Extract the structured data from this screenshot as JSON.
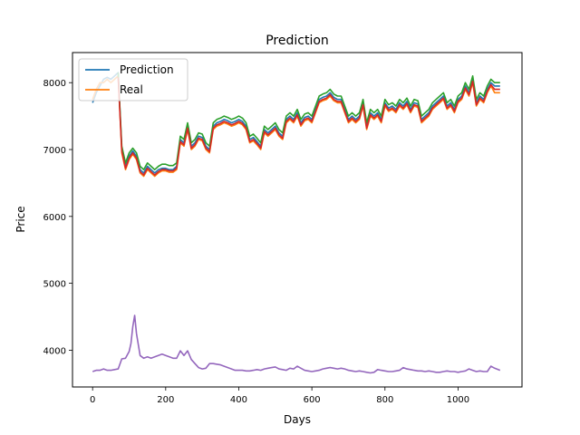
{
  "chart_data": {
    "type": "line",
    "title": "Prediction",
    "xlabel": "Days",
    "ylabel": "Price",
    "xlim": [
      -55,
      1175
    ],
    "ylim": [
      3450,
      8450
    ],
    "xticks": [
      0,
      200,
      400,
      600,
      800,
      1000
    ],
    "yticks": [
      4000,
      5000,
      6000,
      7000,
      8000
    ],
    "legend": {
      "placement": "top-left",
      "entries": [
        "Prediction",
        "Real"
      ]
    },
    "grid": false,
    "colors": [
      "#1f77b4",
      "#ff7f0e",
      "#2ca02c",
      "#d62728",
      "#9467bd"
    ],
    "series": [
      {
        "name": "Prediction",
        "color": "#1f77b4",
        "x": [
          0,
          10,
          20,
          30,
          40,
          50,
          60,
          70,
          80,
          90,
          100,
          110,
          120,
          130,
          140,
          150,
          160,
          170,
          180,
          190,
          200,
          210,
          220,
          230,
          240,
          250,
          260,
          270,
          280,
          290,
          300,
          310,
          320,
          330,
          340,
          350,
          360,
          370,
          380,
          390,
          400,
          410,
          420,
          430,
          440,
          450,
          460,
          470,
          480,
          490,
          500,
          510,
          520,
          530,
          540,
          550,
          560,
          570,
          580,
          590,
          600,
          610,
          620,
          630,
          640,
          650,
          660,
          670,
          680,
          690,
          700,
          710,
          720,
          730,
          740,
          750,
          760,
          770,
          780,
          790,
          800,
          810,
          820,
          830,
          840,
          850,
          860,
          870,
          880,
          890,
          900,
          910,
          920,
          930,
          940,
          950,
          960,
          970,
          980,
          990,
          1000,
          1010,
          1020,
          1030,
          1040,
          1050,
          1060,
          1070,
          1080,
          1090,
          1100,
          1115
        ],
        "y": [
          7700,
          7850,
          7950,
          8050,
          8080,
          8050,
          8100,
          8150,
          7000,
          6750,
          6900,
          6980,
          6900,
          6700,
          6650,
          6750,
          6700,
          6650,
          6700,
          6720,
          6720,
          6700,
          6700,
          6750,
          7150,
          7100,
          7350,
          7050,
          7100,
          7200,
          7180,
          7050,
          7000,
          7350,
          7400,
          7420,
          7450,
          7430,
          7400,
          7420,
          7450,
          7420,
          7350,
          7150,
          7180,
          7120,
          7050,
          7300,
          7250,
          7300,
          7350,
          7250,
          7200,
          7450,
          7500,
          7450,
          7550,
          7400,
          7480,
          7500,
          7450,
          7600,
          7750,
          7780,
          7800,
          7850,
          7780,
          7750,
          7750,
          7600,
          7450,
          7500,
          7450,
          7500,
          7700,
          7350,
          7550,
          7500,
          7550,
          7450,
          7700,
          7620,
          7650,
          7600,
          7700,
          7650,
          7720,
          7600,
          7700,
          7680,
          7450,
          7500,
          7550,
          7650,
          7700,
          7750,
          7800,
          7650,
          7700,
          7600,
          7750,
          7800,
          7950,
          7850,
          8050,
          7700,
          7800,
          7750,
          7900,
          8000,
          7950,
          7950
        ]
      },
      {
        "name": "Real",
        "color": "#ff7f0e",
        "x": [
          0,
          10,
          20,
          30,
          40,
          50,
          60,
          70,
          80,
          90,
          100,
          110,
          120,
          130,
          140,
          150,
          160,
          170,
          180,
          190,
          200,
          210,
          220,
          230,
          240,
          250,
          260,
          270,
          280,
          290,
          300,
          310,
          320,
          330,
          340,
          350,
          360,
          370,
          380,
          390,
          400,
          410,
          420,
          430,
          440,
          450,
          460,
          470,
          480,
          490,
          500,
          510,
          520,
          530,
          540,
          550,
          560,
          570,
          580,
          590,
          600,
          610,
          620,
          630,
          640,
          650,
          660,
          670,
          680,
          690,
          700,
          710,
          720,
          730,
          740,
          750,
          760,
          770,
          780,
          790,
          800,
          810,
          820,
          830,
          840,
          850,
          860,
          870,
          880,
          890,
          900,
          910,
          920,
          930,
          940,
          950,
          960,
          970,
          980,
          990,
          1000,
          1010,
          1020,
          1030,
          1040,
          1050,
          1060,
          1070,
          1080,
          1090,
          1100,
          1115
        ],
        "y": [
          7750,
          7900,
          8000,
          8000,
          8050,
          8000,
          8050,
          8100,
          6950,
          6700,
          6850,
          6930,
          6850,
          6650,
          6600,
          6700,
          6650,
          6600,
          6650,
          6680,
          6680,
          6660,
          6660,
          6700,
          7100,
          7050,
          7300,
          7000,
          7050,
          7150,
          7130,
          7000,
          6950,
          7300,
          7350,
          7370,
          7400,
          7380,
          7350,
          7370,
          7400,
          7370,
          7300,
          7100,
          7130,
          7070,
          7000,
          7250,
          7200,
          7250,
          7300,
          7200,
          7150,
          7400,
          7450,
          7400,
          7500,
          7350,
          7430,
          7450,
          7400,
          7550,
          7700,
          7730,
          7750,
          7800,
          7730,
          7700,
          7700,
          7550,
          7400,
          7450,
          7400,
          7450,
          7650,
          7300,
          7500,
          7450,
          7500,
          7400,
          7650,
          7570,
          7600,
          7550,
          7650,
          7600,
          7670,
          7550,
          7650,
          7630,
          7400,
          7450,
          7500,
          7600,
          7650,
          7700,
          7750,
          7600,
          7650,
          7550,
          7700,
          7750,
          7900,
          7800,
          8000,
          7650,
          7750,
          7700,
          7850,
          7950,
          7850,
          7850
        ]
      },
      {
        "color": "#2ca02c",
        "x": [
          70,
          80,
          90,
          100,
          110,
          120,
          130,
          140,
          150,
          160,
          170,
          180,
          190,
          200,
          210,
          220,
          230,
          240,
          250,
          260,
          270,
          280,
          290,
          300,
          310,
          320,
          330,
          340,
          350,
          360,
          370,
          380,
          390,
          400,
          410,
          420,
          430,
          440,
          450,
          460,
          470,
          480,
          490,
          500,
          510,
          520,
          530,
          540,
          550,
          560,
          570,
          580,
          590,
          600,
          610,
          620,
          630,
          640,
          650,
          660,
          670,
          680,
          690,
          700,
          710,
          720,
          730,
          740,
          750,
          760,
          770,
          780,
          790,
          800,
          810,
          820,
          830,
          840,
          850,
          860,
          870,
          880,
          890,
          900,
          910,
          920,
          930,
          940,
          950,
          960,
          970,
          980,
          990,
          1000,
          1010,
          1020,
          1030,
          1040,
          1050,
          1060,
          1070,
          1080,
          1090,
          1100,
          1115
        ],
        "y": [
          8150,
          7050,
          6800,
          6950,
          7020,
          6950,
          6750,
          6700,
          6800,
          6750,
          6700,
          6750,
          6780,
          6780,
          6760,
          6760,
          6800,
          7200,
          7150,
          7400,
          7100,
          7150,
          7250,
          7230,
          7100,
          7050,
          7400,
          7450,
          7470,
          7500,
          7480,
          7450,
          7470,
          7500,
          7470,
          7400,
          7200,
          7230,
          7170,
          7100,
          7350,
          7300,
          7350,
          7400,
          7300,
          7250,
          7500,
          7550,
          7500,
          7600,
          7450,
          7530,
          7550,
          7500,
          7650,
          7800,
          7830,
          7850,
          7900,
          7830,
          7800,
          7800,
          7650,
          7500,
          7550,
          7500,
          7550,
          7750,
          7400,
          7600,
          7550,
          7600,
          7500,
          7750,
          7670,
          7700,
          7650,
          7750,
          7700,
          7770,
          7650,
          7750,
          7730,
          7500,
          7550,
          7600,
          7700,
          7750,
          7800,
          7850,
          7700,
          7750,
          7650,
          7800,
          7850,
          8000,
          7900,
          8100,
          7750,
          7850,
          7800,
          7950,
          8050,
          8000,
          8000
        ]
      },
      {
        "color": "#d62728",
        "x": [
          70,
          80,
          90,
          100,
          110,
          120,
          130,
          140,
          150,
          160,
          170,
          180,
          190,
          200,
          210,
          220,
          230,
          240,
          250,
          260,
          270,
          280,
          290,
          300,
          310,
          320,
          330,
          340,
          350,
          360,
          370,
          380,
          390,
          400,
          410,
          420,
          430,
          440,
          450,
          460,
          470,
          480,
          490,
          500,
          510,
          520,
          530,
          540,
          550,
          560,
          570,
          580,
          590,
          600,
          610,
          620,
          630,
          640,
          650,
          660,
          670,
          680,
          690,
          700,
          710,
          720,
          730,
          740,
          750,
          760,
          770,
          780,
          790,
          800,
          810,
          820,
          830,
          840,
          850,
          860,
          870,
          880,
          890,
          900,
          910,
          920,
          930,
          940,
          950,
          960,
          970,
          980,
          990,
          1000,
          1010,
          1020,
          1030,
          1040,
          1050,
          1060,
          1070,
          1080,
          1090,
          1100,
          1115
        ],
        "y": [
          8080,
          6980,
          6720,
          6870,
          6950,
          6870,
          6670,
          6620,
          6720,
          6670,
          6620,
          6670,
          6700,
          6700,
          6680,
          6680,
          6720,
          7120,
          7070,
          7320,
          7020,
          7070,
          7170,
          7150,
          7020,
          6970,
          7320,
          7370,
          7390,
          7420,
          7400,
          7370,
          7390,
          7420,
          7390,
          7320,
          7120,
          7150,
          7090,
          7020,
          7270,
          7220,
          7270,
          7320,
          7220,
          7170,
          7420,
          7470,
          7420,
          7520,
          7370,
          7450,
          7470,
          7420,
          7570,
          7720,
          7750,
          7770,
          7820,
          7750,
          7720,
          7720,
          7570,
          7420,
          7470,
          7420,
          7470,
          7670,
          7320,
          7520,
          7470,
          7520,
          7420,
          7670,
          7590,
          7620,
          7570,
          7670,
          7620,
          7690,
          7570,
          7670,
          7650,
          7420,
          7470,
          7520,
          7620,
          7670,
          7720,
          7770,
          7620,
          7670,
          7570,
          7720,
          7770,
          7920,
          7820,
          8020,
          7670,
          7770,
          7720,
          7870,
          7970,
          7900,
          7900
        ]
      },
      {
        "color": "#9467bd",
        "x": [
          0,
          10,
          20,
          30,
          40,
          50,
          60,
          70,
          80,
          90,
          100,
          105,
          110,
          115,
          120,
          130,
          140,
          150,
          160,
          170,
          180,
          190,
          200,
          210,
          220,
          230,
          240,
          250,
          260,
          270,
          280,
          290,
          300,
          310,
          320,
          330,
          340,
          350,
          360,
          370,
          380,
          390,
          400,
          410,
          420,
          430,
          440,
          450,
          460,
          470,
          480,
          490,
          500,
          510,
          520,
          530,
          540,
          550,
          560,
          570,
          580,
          590,
          600,
          610,
          620,
          630,
          640,
          650,
          660,
          670,
          680,
          690,
          700,
          710,
          720,
          730,
          740,
          750,
          760,
          770,
          780,
          790,
          800,
          810,
          820,
          830,
          840,
          850,
          860,
          870,
          880,
          890,
          900,
          910,
          920,
          930,
          940,
          950,
          960,
          970,
          980,
          990,
          1000,
          1010,
          1020,
          1030,
          1040,
          1050,
          1060,
          1070,
          1080,
          1090,
          1100,
          1115
        ],
        "y": [
          3680,
          3700,
          3700,
          3720,
          3700,
          3700,
          3710,
          3720,
          3870,
          3880,
          3980,
          4100,
          4350,
          4520,
          4250,
          3920,
          3880,
          3900,
          3880,
          3900,
          3920,
          3940,
          3920,
          3900,
          3880,
          3880,
          3990,
          3920,
          3990,
          3860,
          3800,
          3740,
          3720,
          3730,
          3800,
          3800,
          3790,
          3780,
          3760,
          3740,
          3720,
          3700,
          3700,
          3700,
          3690,
          3690,
          3700,
          3710,
          3700,
          3720,
          3730,
          3740,
          3750,
          3720,
          3710,
          3700,
          3730,
          3720,
          3760,
          3730,
          3700,
          3690,
          3680,
          3690,
          3700,
          3720,
          3730,
          3740,
          3730,
          3720,
          3730,
          3720,
          3700,
          3690,
          3680,
          3690,
          3680,
          3670,
          3660,
          3670,
          3710,
          3700,
          3690,
          3680,
          3680,
          3690,
          3700,
          3740,
          3720,
          3710,
          3700,
          3690,
          3690,
          3680,
          3690,
          3680,
          3670,
          3670,
          3680,
          3690,
          3680,
          3680,
          3670,
          3680,
          3690,
          3720,
          3700,
          3680,
          3690,
          3680,
          3680,
          3760,
          3730,
          3700
        ]
      }
    ]
  }
}
